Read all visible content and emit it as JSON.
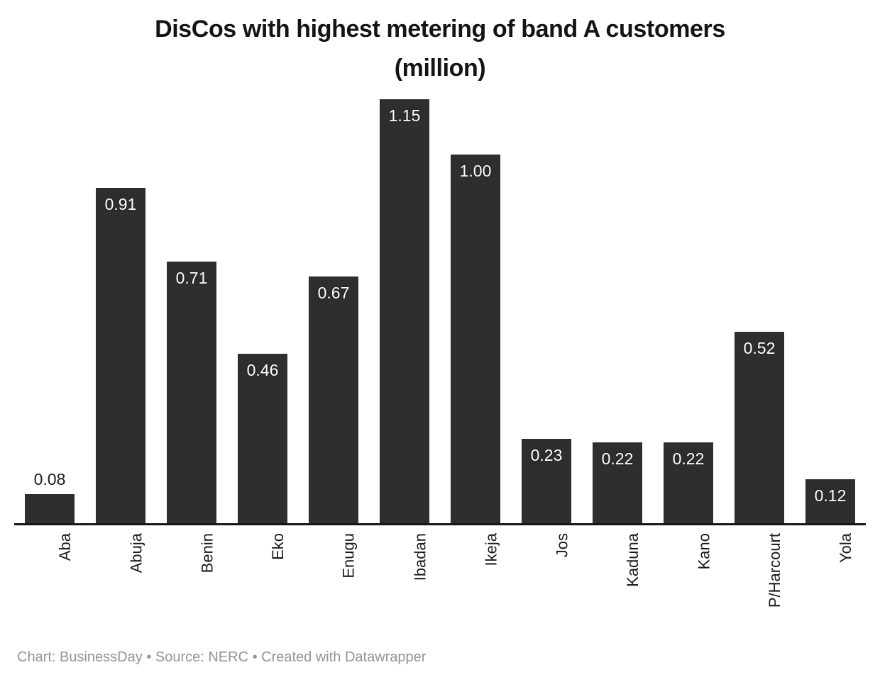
{
  "chart_data": {
    "type": "bar",
    "title": "DisCos with highest metering of band A customers (million)",
    "title_lines": [
      "DisCos with highest metering of band A customers",
      "(million)"
    ],
    "categories": [
      "Aba",
      "Abuja",
      "Benin",
      "Eko",
      "Enugu",
      "Ibadan",
      "Ikeja",
      "Jos",
      "Kaduna",
      "Kano",
      "P/Harcourt",
      "Yola"
    ],
    "values": [
      0.08,
      0.91,
      0.71,
      0.46,
      0.67,
      1.15,
      1.0,
      0.23,
      0.22,
      0.22,
      0.52,
      0.12
    ],
    "value_labels": [
      "0.08",
      "0.91",
      "0.71",
      "0.46",
      "0.67",
      "1.15",
      "1.00",
      "0.23",
      "0.22",
      "0.22",
      "0.52",
      "0.12"
    ],
    "xlabel": "",
    "ylabel": "",
    "ylim": [
      0,
      1.15
    ],
    "grid": false,
    "legend": null,
    "bar_color": "#2e2e2e",
    "axis_color": "#161616",
    "value_label_color_inside": "#ffffff",
    "value_label_color_outside": "#1a1a1a",
    "category_label_color": "#1a1a1a"
  },
  "footer": {
    "text": "Chart: BusinessDay • Source: NERC • Created with Datawrapper"
  }
}
